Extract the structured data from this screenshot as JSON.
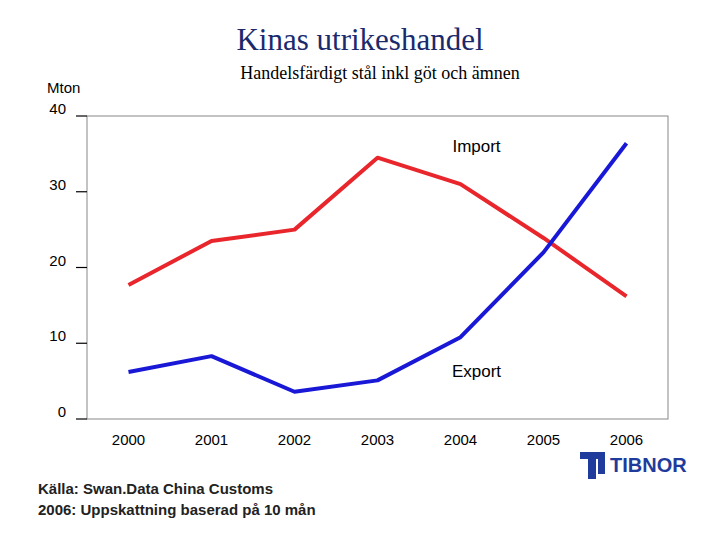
{
  "chart_data": {
    "type": "line",
    "title": "Kinas utrikeshandel",
    "subtitle": "Handelsfärdigt stål inkl göt och ämnen",
    "y_label": "Mton",
    "categories": [
      "2000",
      "2001",
      "2002",
      "2003",
      "2004",
      "2005",
      "2006"
    ],
    "series": [
      {
        "name": "Import",
        "color": "#e8262b",
        "values": [
          17.7,
          23.5,
          25.0,
          34.5,
          31.0,
          23.9,
          16.2
        ]
      },
      {
        "name": "Export",
        "color": "#1818d6",
        "values": [
          6.2,
          8.3,
          3.6,
          5.1,
          10.8,
          22.0,
          36.4
        ]
      }
    ],
    "ylim": [
      0,
      40
    ],
    "yticks": [
      0,
      10,
      20,
      30,
      40
    ],
    "grid": false,
    "annotations": [
      "Källa: Swan.Data China Customs",
      "2006: Uppskattning baserad på 10 mån"
    ]
  },
  "logo": {
    "text": "TIBNOR"
  }
}
